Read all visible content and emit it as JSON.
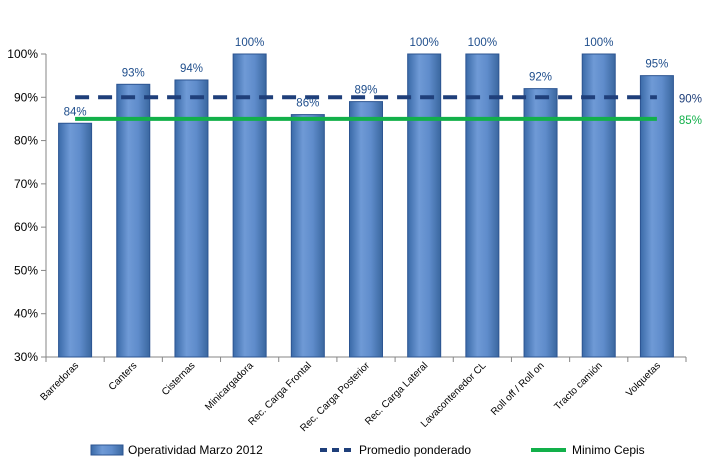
{
  "chart_data": {
    "type": "bar",
    "categories": [
      "Barredoras",
      "Canters",
      "Cisternas",
      "Minicargadora",
      "Rec. Carga Frontal",
      "Rec. Carga Posterior",
      "Rec. Carga Lateral",
      "Lavacontenedor CL",
      "Roll off / Roll on",
      "Tracto camión",
      "Volquetas"
    ],
    "series": [
      {
        "name": "Operatividad Marzo 2012",
        "type": "bar",
        "values": [
          84,
          93,
          94,
          100,
          86,
          89,
          100,
          100,
          92,
          100,
          95
        ],
        "labels": [
          "84%",
          "93%",
          "94%",
          "100%",
          "86%",
          "89%",
          "100%",
          "100%",
          "92%",
          "100%",
          "95%"
        ],
        "color": "#4f81bd"
      },
      {
        "name": "Promedio ponderado",
        "type": "line",
        "style": "dashed",
        "value": 90,
        "end_label": "90%",
        "color": "#1f3f7a"
      },
      {
        "name": "Minimo Cepis",
        "type": "line",
        "style": "solid",
        "value": 85,
        "end_label": "85%",
        "color": "#12b04a"
      }
    ],
    "ylim": [
      30,
      100
    ],
    "yticks": [
      30,
      40,
      50,
      60,
      70,
      80,
      90,
      100
    ],
    "ytick_labels": [
      "30%",
      "40%",
      "50%",
      "60%",
      "70%",
      "80%",
      "90%",
      "100%"
    ],
    "grid": false,
    "legend": "bottom",
    "title": "",
    "xlabel": "",
    "ylabel": ""
  }
}
